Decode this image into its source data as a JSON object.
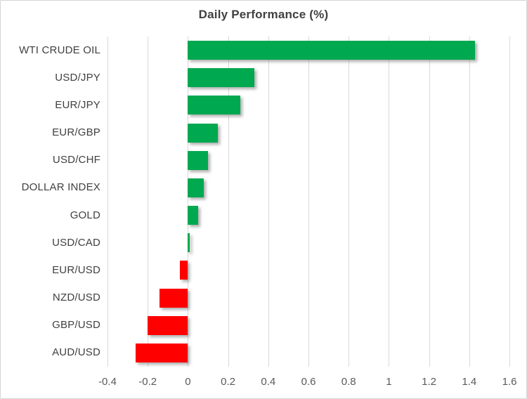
{
  "title": "Daily Performance (%)",
  "colors": {
    "positive": "#00a84f",
    "negative": "#fe0000",
    "gridline": "#d9d9d9",
    "title_text": "#404040",
    "category_text": "#404040",
    "tick_text": "#595959",
    "frame_border": "#d6d6d6"
  },
  "chart_data": {
    "type": "bar",
    "orientation": "horizontal",
    "title": "Daily Performance (%)",
    "categories": [
      "WTI CRUDE OIL",
      "USD/JPY",
      "EUR/JPY",
      "EUR/GBP",
      "USD/CHF",
      "DOLLAR INDEX",
      "GOLD",
      "USD/CAD",
      "EUR/USD",
      "NZD/USD",
      "GBP/USD",
      "AUD/USD"
    ],
    "values": [
      1.43,
      0.33,
      0.26,
      0.15,
      0.1,
      0.08,
      0.05,
      0.01,
      -0.04,
      -0.14,
      -0.2,
      -0.26
    ],
    "xlabel": "",
    "ylabel": "",
    "xlim": [
      -0.4,
      1.6
    ],
    "xticks": [
      -0.4,
      -0.2,
      0,
      0.2,
      0.4,
      0.6,
      0.8,
      1,
      1.2,
      1.4,
      1.6
    ],
    "xtick_labels": [
      "-0.4",
      "-0.2",
      "0",
      "0.2",
      "0.4",
      "0.6",
      "0.8",
      "1",
      "1.2",
      "1.4",
      "1.6"
    ],
    "grid": true,
    "legend": false,
    "bar_color_rule": "green if positive, red if negative"
  }
}
